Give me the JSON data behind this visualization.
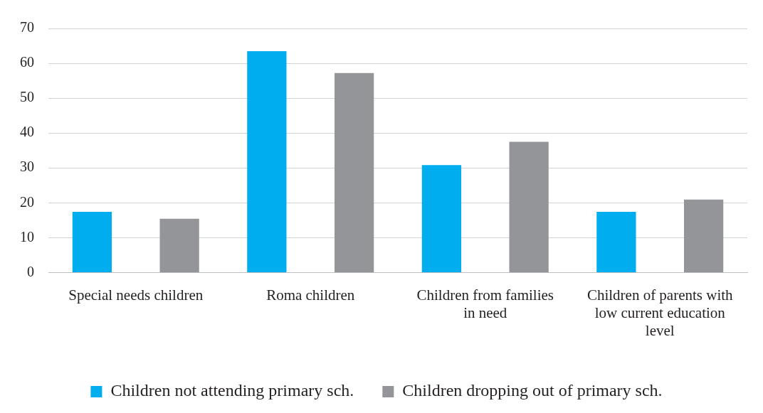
{
  "chart_data": {
    "type": "bar",
    "categories": [
      "Special needs children",
      "Roma children",
      "Children from families in need",
      "Children of parents with low current education level"
    ],
    "series": [
      {
        "name": "Children not attending primary sch.",
        "color": "#00aeef",
        "values": [
          17.4,
          63.5,
          30.8,
          17.4
        ]
      },
      {
        "name": "Children dropping out of primary sch.",
        "color": "#939598",
        "values": [
          15.4,
          57.2,
          37.5,
          20.9
        ]
      }
    ],
    "ylim": [
      0,
      70
    ],
    "yticks": [
      0,
      10,
      20,
      30,
      40,
      50,
      60,
      70
    ],
    "grid": "y",
    "legend": "bottom"
  }
}
